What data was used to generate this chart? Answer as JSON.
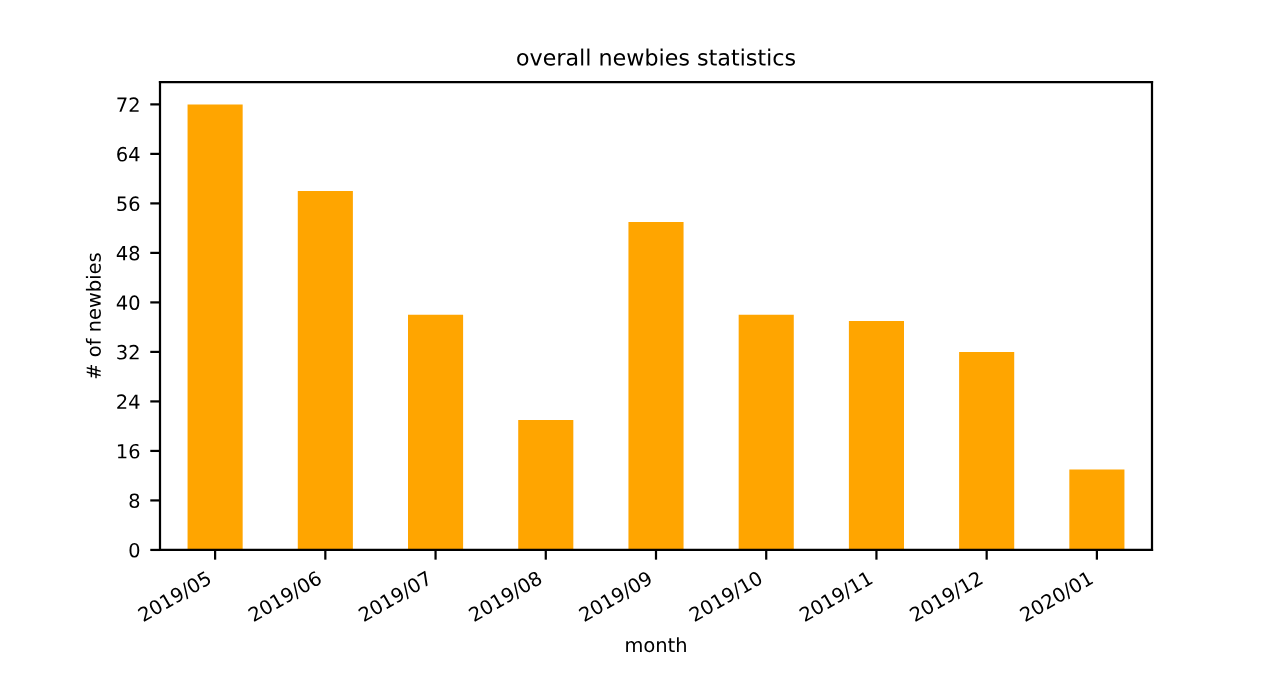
{
  "chart_data": {
    "type": "bar",
    "title": "overall newbies statistics",
    "xlabel": "month",
    "ylabel": "# of newbies",
    "categories": [
      "2019/05",
      "2019/06",
      "2019/07",
      "2019/08",
      "2019/09",
      "2019/10",
      "2019/11",
      "2019/12",
      "2020/01"
    ],
    "values": [
      72,
      58,
      38,
      21,
      53,
      38,
      37,
      32,
      13
    ],
    "color": "#ffa500",
    "ylim": [
      0,
      75.6
    ],
    "yticks": [
      0,
      8,
      16,
      24,
      32,
      40,
      48,
      56,
      64,
      72
    ],
    "grid": false,
    "legend": false
  }
}
